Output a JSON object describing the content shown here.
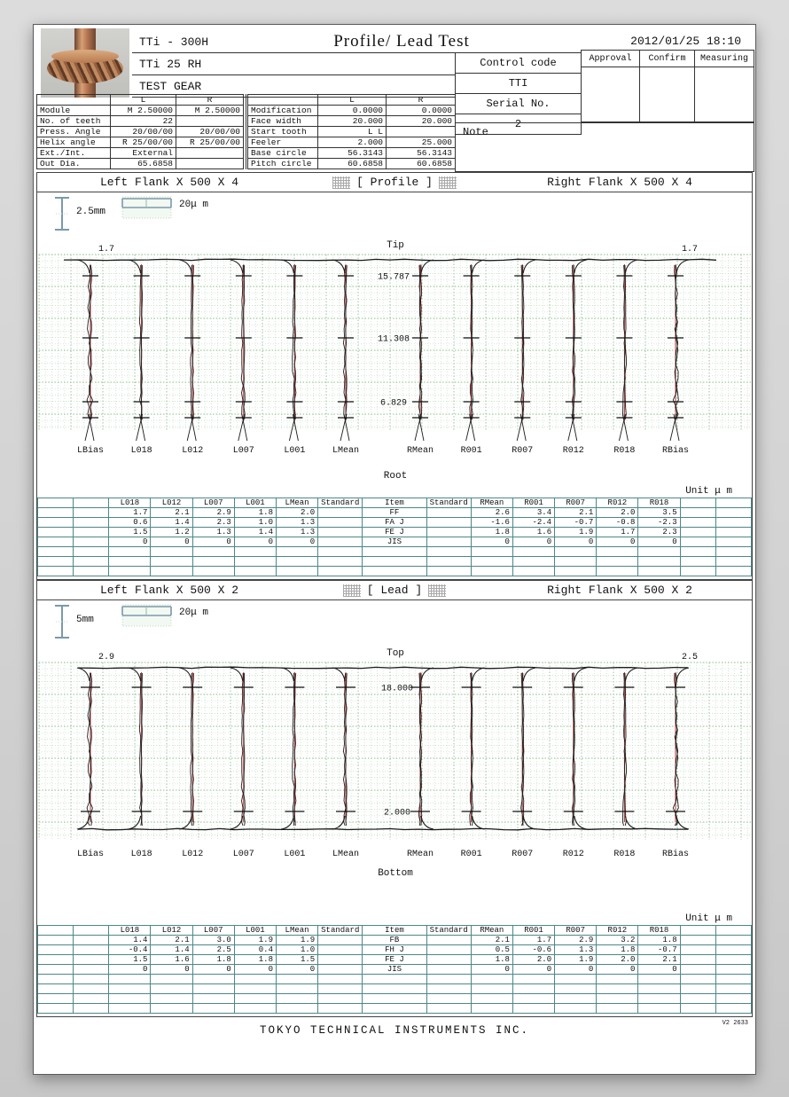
{
  "page": {
    "machine": "TTi - 300H",
    "workpiece": "TTi 25 RH",
    "gear_name": "TEST GEAR",
    "title": "Profile/ Lead Test",
    "datetime": "2012/01/25 18:10",
    "footer": "TOKYO  TECHNICAL  INSTRUMENTS  INC.",
    "version": "V2 2633"
  },
  "control": {
    "control_code_label": "Control code",
    "control_code_value": "TTI",
    "serial_label": "Serial No.",
    "serial_value": "2",
    "approval_label": "Approval",
    "confirm_label": "Confirm",
    "measuring_label": "Measuring",
    "note_label": "Note"
  },
  "params": {
    "col_l": "L",
    "col_r": "R",
    "left_rows": [
      {
        "label": "Module",
        "l": "M 2.50000",
        "r": "M 2.50000"
      },
      {
        "label": "No. of teeth",
        "l": "22",
        "r": ""
      },
      {
        "label": "Press. Angle",
        "l": "20/00/00",
        "r": "20/00/00"
      },
      {
        "label": "Helix angle",
        "l": "R 25/00/00",
        "r": "R 25/00/00"
      },
      {
        "label": "Ext./Int.",
        "l": "External",
        "r": ""
      },
      {
        "label": "Out Dia.",
        "l": "65.6858",
        "r": ""
      }
    ],
    "right_rows": [
      {
        "label": "Modification",
        "l": "0.0000",
        "r": "0.0000"
      },
      {
        "label": "Face width",
        "l": "20.000",
        "r": "20.000"
      },
      {
        "label": "Start tooth",
        "l": "L L",
        "r": ""
      },
      {
        "label": "Feeler",
        "l": "2.000",
        "r": "25.000"
      },
      {
        "label": "Base circle",
        "l": "56.3143",
        "r": "56.3143"
      },
      {
        "label": "Pitch circle",
        "l": "60.6858",
        "r": "60.6858"
      }
    ]
  },
  "profile_section": {
    "left_header": "Left Flank  X 500  X 4",
    "center_header": "[ Profile ]",
    "right_header": "Right Flank  X 500  X 4",
    "scale_v": "2.5mm",
    "scale_h": "20μ m",
    "unit": "Unit μ m"
  },
  "lead_section": {
    "left_header": "Left Flank  X 500   X 2",
    "center_header": "[ Lead ]",
    "right_header": "Right Flank  X 500   X 2",
    "scale_v": "5mm",
    "scale_h": "20μ m",
    "unit": "Unit μ m"
  },
  "chart_data": [
    {
      "type": "line",
      "name": "profile-traces",
      "title": "[ Profile ]",
      "traces": [
        "LBias",
        "L018",
        "L012",
        "L007",
        "L001",
        "LMean",
        "RMean",
        "R001",
        "R007",
        "R012",
        "R018",
        "RBias"
      ],
      "top_label": "Tip",
      "bottom_label": "Root",
      "end_values": {
        "left": "1.7",
        "right": "1.7"
      },
      "tick_values": [
        "15.787",
        "11.308",
        "6.829"
      ],
      "axis_range_note": "roll length marks in mm along tooth profile",
      "grid": "on",
      "trace_color": "#1c1c1c",
      "reference_color": "#b13434",
      "grid_color": "#bfdcbf"
    },
    {
      "type": "line",
      "name": "lead-traces",
      "title": "[ Lead ]",
      "traces": [
        "LBias",
        "L018",
        "L012",
        "L007",
        "L001",
        "LMean",
        "RMean",
        "R001",
        "R007",
        "R012",
        "R018",
        "RBias"
      ],
      "top_label": "Top",
      "bottom_label": "Bottom",
      "end_values": {
        "left": "2.9",
        "right": "2.5"
      },
      "tick_values": [
        "18.000",
        "2.000"
      ],
      "axis_range_note": "face width marks in mm",
      "grid": "on",
      "trace_color": "#1c1c1c",
      "reference_color": "#b13434",
      "grid_color": "#bfdcbf"
    }
  ],
  "profile_table": {
    "headers": {
      "left": [
        "L018",
        "L012",
        "L007",
        "L001",
        "LMean"
      ],
      "standard": "Standard",
      "item": "Item",
      "right": [
        "RMean",
        "R001",
        "R007",
        "R012",
        "R018"
      ]
    },
    "rows": [
      {
        "left": [
          "1.7",
          "2.1",
          "2.9",
          "1.8",
          "2.0"
        ],
        "item": "FF",
        "right": [
          "2.6",
          "3.4",
          "2.1",
          "2.0",
          "3.5"
        ]
      },
      {
        "left": [
          "0.6",
          "1.4",
          "2.3",
          "1.0",
          "1.3"
        ],
        "item": "FA J",
        "right": [
          "-1.6",
          "-2.4",
          "-0.7",
          "-0.8",
          "-2.3"
        ]
      },
      {
        "left": [
          "1.5",
          "1.2",
          "1.3",
          "1.4",
          "1.3"
        ],
        "item": "FE J",
        "right": [
          "1.8",
          "1.6",
          "1.9",
          "1.7",
          "2.3"
        ]
      },
      {
        "left": [
          "0",
          "0",
          "0",
          "0",
          "0"
        ],
        "item": "JIS",
        "right": [
          "0",
          "0",
          "0",
          "0",
          "0"
        ]
      }
    ],
    "empty_rows": 3
  },
  "lead_table": {
    "headers": {
      "left": [
        "L018",
        "L012",
        "L007",
        "L001",
        "LMean"
      ],
      "standard": "Standard",
      "item": "Item",
      "right": [
        "RMean",
        "R001",
        "R007",
        "R012",
        "R018"
      ]
    },
    "rows": [
      {
        "left": [
          "1.4",
          "2.1",
          "3.0",
          "1.9",
          "1.9"
        ],
        "item": "FB",
        "right": [
          "2.1",
          "1.7",
          "2.9",
          "3.2",
          "1.8"
        ]
      },
      {
        "left": [
          "-0.4",
          "1.4",
          "2.5",
          "0.4",
          "1.0"
        ],
        "item": "FH J",
        "right": [
          "0.5",
          "-0.6",
          "1.3",
          "1.8",
          "-0.7"
        ]
      },
      {
        "left": [
          "1.5",
          "1.6",
          "1.8",
          "1.8",
          "1.5"
        ],
        "item": "FE J",
        "right": [
          "1.8",
          "2.0",
          "1.9",
          "2.0",
          "2.1"
        ]
      },
      {
        "left": [
          "0",
          "0",
          "0",
          "0",
          "0"
        ],
        "item": "JIS",
        "right": [
          "0",
          "0",
          "0",
          "0",
          "0"
        ]
      }
    ],
    "empty_rows": 4
  }
}
